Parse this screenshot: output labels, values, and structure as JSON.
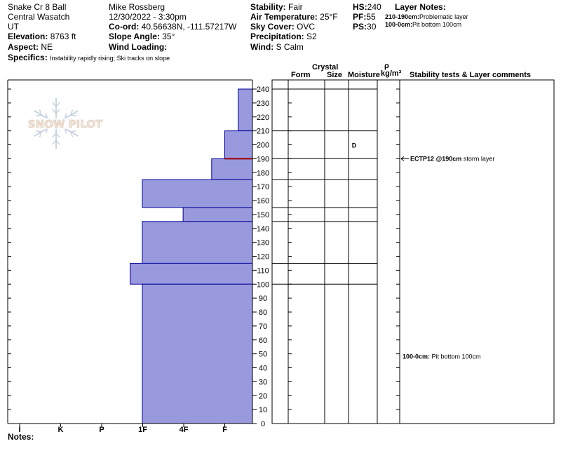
{
  "header": {
    "location": "Snake Cr 8 Ball",
    "range": "Central Wasatch",
    "state": "UT",
    "elevation_label": "Elevation:",
    "elevation": "8763 ft",
    "aspect_label": "Aspect:",
    "aspect": "NE",
    "specifics_label": "Specifics:",
    "specifics": "Instability rapidly rising; Ski tracks on slope",
    "observer": "Mike Rossberg",
    "datetime": "12/30/2022 - 3:30pm",
    "coord_label": "Co-ord:",
    "coord": "40.56638N, -111.57217W",
    "slope_label": "Slope Angle:",
    "slope": "35°",
    "wind_loading_label": "Wind Loading:",
    "wind_loading": "",
    "stability_label": "Stability:",
    "stability": "Fair",
    "air_temp_label": "Air Temperature:",
    "air_temp": "25°F",
    "sky_label": "Sky Cover:",
    "sky": "OVC",
    "precip_label": "Precipitation:",
    "precip": "S2",
    "wind_label": "Wind:",
    "wind": "S Calm",
    "hs_label": "HS:",
    "hs": "240",
    "pf_label": "PF:",
    "pf": "55",
    "ps_label": "PS:",
    "ps": "30",
    "layer_notes_title": "Layer Notes:",
    "layer_notes": [
      {
        "range": "210-190cm:",
        "text": "Problematic layer"
      },
      {
        "range": "100-0cm:",
        "text": "Pit bottom 100cm"
      }
    ],
    "notes_label": "Notes:"
  },
  "colors": {
    "bar_fill": "#9999dd",
    "bar_stroke": "#000099",
    "marker_line": "#990000",
    "logo": "#c8d4e0"
  },
  "logo": {
    "text": "SNOW PILOT"
  },
  "chart_data": {
    "type": "bar",
    "orientation": "horizontal",
    "y_axis": {
      "min": 0,
      "max": 240,
      "step": 10
    },
    "hardness_ticks": [
      "I",
      "K",
      "P",
      "1F",
      "4F",
      "F"
    ],
    "hardness_min": 0,
    "hardness_max": 6,
    "layers": [
      {
        "top": 240,
        "bottom": 210,
        "hardness": 0.35
      },
      {
        "top": 210,
        "bottom": 190,
        "hardness": 0.68
      },
      {
        "top": 190,
        "bottom": 175,
        "hardness": 1.0
      },
      {
        "top": 175,
        "bottom": 155,
        "hardness": 2.7
      },
      {
        "top": 155,
        "bottom": 145,
        "hardness": 1.7
      },
      {
        "top": 145,
        "bottom": 115,
        "hardness": 2.7
      },
      {
        "top": 115,
        "bottom": 100,
        "hardness": 3.0
      },
      {
        "top": 100,
        "bottom": 0,
        "hardness": 2.7
      }
    ],
    "marker_depth": 190,
    "table_headers": {
      "crystal": "Crystal",
      "form": "Form",
      "size": "Size",
      "moisture": "Moisture",
      "rho": "ρ",
      "density": "kg/m³",
      "comments": "Stability tests & Layer comments"
    },
    "layer_boundaries": [
      240,
      210,
      190,
      175,
      155,
      145,
      115,
      100,
      0
    ],
    "moisture_entries": [
      {
        "depth": 200,
        "value": "D"
      }
    ],
    "comments": [
      {
        "depth": 190,
        "bold": "ECTP12 @190cm",
        "text": "storm layer",
        "arrow": true
      },
      {
        "depth": 48,
        "bold": "100-0cm:",
        "text": "Pit bottom 100cm",
        "arrow": false
      }
    ]
  }
}
